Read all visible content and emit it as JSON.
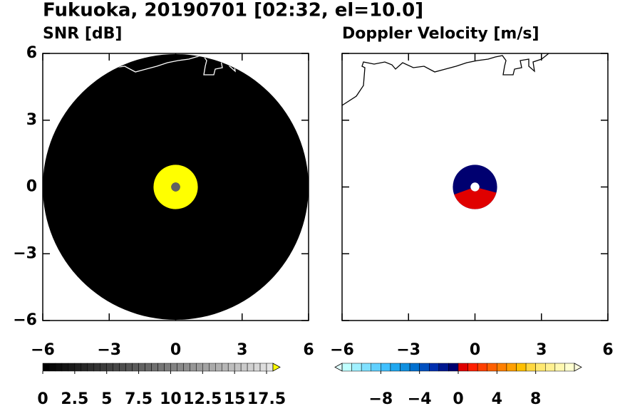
{
  "title": "Fukuoka, 20190701 [02:32, el=10.0]",
  "chart_data": [
    {
      "type": "ppi",
      "subtitle": "SNR [dB]",
      "xlim": [
        -6,
        6
      ],
      "ylim": [
        -6,
        6
      ],
      "xticks": [
        {
          "value": -6,
          "label": "−6"
        },
        {
          "value": -3,
          "label": "−3"
        },
        0,
        3,
        6
      ],
      "yticks": [
        {
          "value": -6,
          "label": "−6"
        },
        {
          "value": -3,
          "label": "−3"
        },
        0,
        3,
        6
      ],
      "ytick_labels": true,
      "coast_color": "#ffffff",
      "rings": [
        {
          "inner": 0,
          "outer": 6,
          "value": 0
        },
        {
          "inner": 0.2,
          "outer": 1,
          "value": 19
        },
        {
          "inner": 0,
          "outer": 0.2,
          "value": 7.5
        }
      ],
      "colorbar": {
        "lim": [
          0,
          18
        ],
        "step": 0.5,
        "colors": [
          "#000000",
          "#e4e4e4"
        ],
        "over": "#ffff00",
        "ticks": [
          0,
          2.5,
          5,
          7.5,
          10,
          12.5,
          15,
          17.5
        ]
      }
    },
    {
      "type": "ppi",
      "subtitle": "Doppler Velocity [m/s]",
      "xlim": [
        -6,
        6
      ],
      "ylim": [
        -6,
        6
      ],
      "xticks": [
        {
          "value": -6,
          "label": "−6"
        },
        {
          "value": -3,
          "label": "−3"
        },
        0,
        3,
        6
      ],
      "yticks": [
        -6,
        -3,
        0,
        3,
        6
      ],
      "ytick_labels": false,
      "coast_color": "#000000",
      "rings": [
        {
          "inner": 0.2,
          "outer": 1,
          "value": -1
        },
        {
          "inner": 0.2,
          "outer": 1,
          "value": 0.5,
          "theta": [
            200,
            345
          ]
        }
      ],
      "colorbar": {
        "lim": [
          -12,
          12
        ],
        "step": 1,
        "colors": [
          "#c0ffff",
          "#a0f0ff",
          "#80e0ff",
          "#60d0ff",
          "#40c0ff",
          "#20a8f0",
          "#1090e0",
          "#0070d0",
          "#0050c0",
          "#0030b0",
          "#001890",
          "#000070",
          "#e00000",
          "#ff2000",
          "#ff4000",
          "#ff6000",
          "#ff8000",
          "#ffa000",
          "#ffc000",
          "#ffd840",
          "#ffe870",
          "#fff090",
          "#fff8b0",
          "#ffffd0"
        ],
        "under": "#e0ffff",
        "over": "#ffffe0",
        "ticks": [
          {
            "value": -8,
            "label": "−8"
          },
          {
            "value": -4,
            "label": "−4"
          },
          0,
          4,
          8
        ]
      }
    }
  ]
}
